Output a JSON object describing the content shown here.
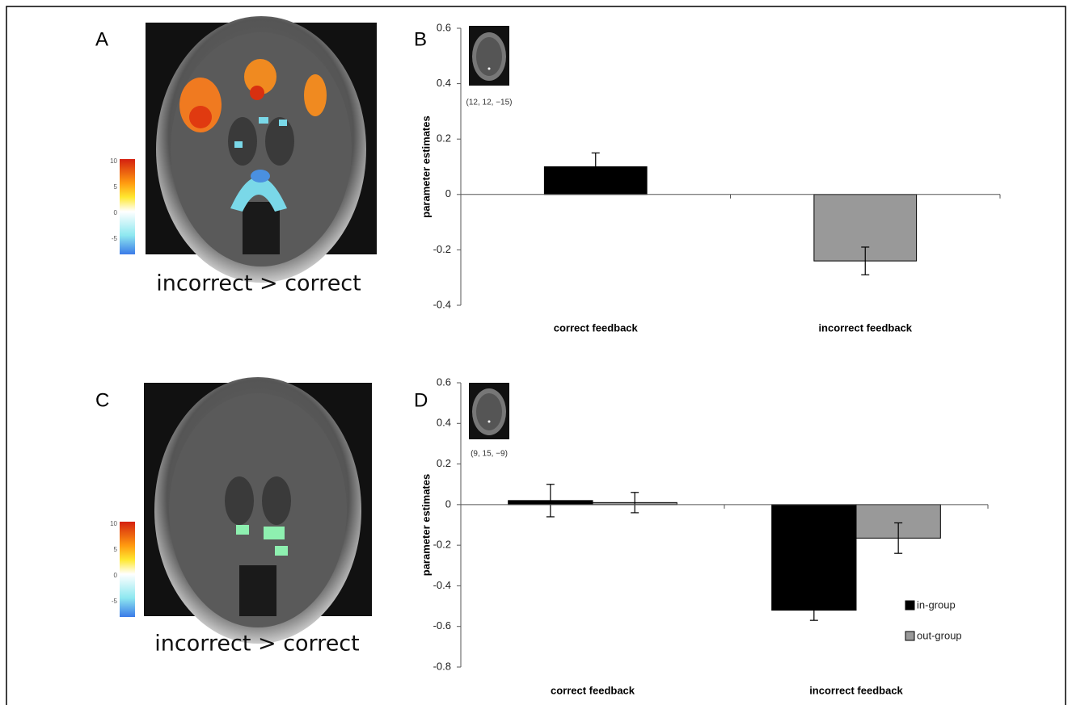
{
  "panels": [
    {
      "label": "A",
      "caption": "incorrect > correct",
      "colorbar_ticks": [
        10,
        5,
        0,
        -5
      ]
    },
    {
      "label": "B",
      "inset_caption": "(12, 12, −15)"
    },
    {
      "label": "C",
      "caption": "incorrect > correct",
      "colorbar_ticks": [
        10,
        5,
        0,
        -5
      ]
    },
    {
      "label": "D",
      "inset_caption": "(9, 15, −9)"
    }
  ],
  "chart_data": [
    {
      "type": "bar",
      "y_label": "parameter estimates",
      "categories": [
        "correct feedback",
        "incorrect feedback"
      ],
      "values": [
        0.1,
        -0.24
      ],
      "errors": [
        0.05,
        0.05
      ],
      "colors": [
        "#000000",
        "#999999"
      ],
      "ylim": [
        -0.4,
        0.6
      ],
      "yticks": [
        0.6,
        0.4,
        0.2,
        0,
        -0.2,
        -0.4
      ]
    },
    {
      "type": "grouped_bar",
      "y_label": "parameter estimates",
      "categories": [
        "correct feedback",
        "incorrect feedback"
      ],
      "series": [
        {
          "name": "in-group",
          "color": "#000000",
          "values": [
            0.02,
            -0.52
          ],
          "errors": [
            0.08,
            0.05
          ]
        },
        {
          "name": "out-group",
          "color": "#999999",
          "values": [
            0.01,
            -0.165
          ],
          "errors": [
            0.05,
            0.075
          ]
        }
      ],
      "ylim": [
        -0.8,
        0.6
      ],
      "yticks": [
        0.6,
        0.4,
        0.2,
        0,
        -0.2,
        -0.4,
        -0.6,
        -0.8
      ],
      "legend": "lower right"
    }
  ]
}
